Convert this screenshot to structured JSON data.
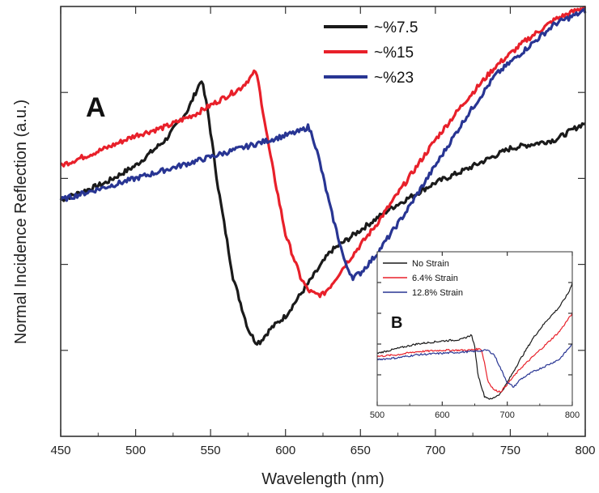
{
  "chart_data": [
    {
      "type": "line",
      "panel_label": "A",
      "xlabel": "Wavelength (nm)",
      "ylabel": "Normal Incidence Reflection (a.u.)",
      "xlim": [
        450,
        800
      ],
      "ylim": [
        0,
        1
      ],
      "x_ticks": [
        450,
        500,
        550,
        600,
        650,
        700,
        750,
        800
      ],
      "y_tick_labels_shown": false,
      "grid": false,
      "legend_position": "top-right",
      "series": [
        {
          "name": "~%7.5",
          "color": "#1a1a1a",
          "x": [
            450,
            480,
            500,
            520,
            535,
            540,
            544,
            548,
            555,
            565,
            575,
            580,
            583,
            590,
            600,
            610,
            620,
            630,
            650,
            670,
            690,
            700,
            720,
            750,
            780,
            800
          ],
          "y": [
            0.55,
            0.59,
            0.63,
            0.69,
            0.76,
            0.8,
            0.83,
            0.76,
            0.58,
            0.37,
            0.25,
            0.22,
            0.22,
            0.25,
            0.28,
            0.33,
            0.38,
            0.43,
            0.48,
            0.53,
            0.57,
            0.59,
            0.62,
            0.67,
            0.69,
            0.73
          ]
        },
        {
          "name": "~%15",
          "color": "#e8202a",
          "x": [
            450,
            480,
            500,
            520,
            540,
            560,
            570,
            578,
            580,
            582,
            590,
            600,
            610,
            615,
            620,
            625,
            630,
            640,
            660,
            680,
            700,
            720,
            740,
            760,
            780,
            800
          ],
          "y": [
            0.63,
            0.67,
            0.7,
            0.72,
            0.75,
            0.79,
            0.81,
            0.84,
            0.85,
            0.82,
            0.65,
            0.47,
            0.37,
            0.34,
            0.33,
            0.33,
            0.35,
            0.4,
            0.49,
            0.59,
            0.69,
            0.78,
            0.86,
            0.92,
            0.97,
            1.0
          ]
        },
        {
          "name": "~%23",
          "color": "#283593",
          "x": [
            450,
            480,
            500,
            520,
            540,
            560,
            580,
            600,
            610,
            615,
            618,
            622,
            630,
            640,
            645,
            650,
            660,
            680,
            700,
            720,
            740,
            760,
            780,
            800
          ],
          "y": [
            0.55,
            0.58,
            0.6,
            0.62,
            0.64,
            0.66,
            0.68,
            0.7,
            0.71,
            0.72,
            0.7,
            0.65,
            0.53,
            0.4,
            0.37,
            0.38,
            0.42,
            0.52,
            0.63,
            0.74,
            0.84,
            0.9,
            0.96,
            0.99
          ]
        }
      ]
    },
    {
      "type": "line",
      "panel_label": "B",
      "xlim": [
        500,
        800
      ],
      "ylim": [
        0,
        1
      ],
      "x_ticks": [
        500,
        600,
        700,
        800
      ],
      "y_tick_labels_shown": false,
      "grid": false,
      "legend_position": "top-left",
      "series": [
        {
          "name": "No Strain",
          "color": "#1a1a1a",
          "x": [
            500,
            530,
            560,
            600,
            630,
            645,
            650,
            655,
            665,
            675,
            690,
            700,
            720,
            740,
            760,
            780,
            795,
            800
          ],
          "y": [
            0.34,
            0.37,
            0.4,
            0.42,
            0.43,
            0.46,
            0.38,
            0.2,
            0.06,
            0.04,
            0.08,
            0.15,
            0.3,
            0.44,
            0.55,
            0.64,
            0.74,
            0.8
          ]
        },
        {
          "name": "6.4% Strain",
          "color": "#e8202a",
          "x": [
            500,
            530,
            560,
            600,
            640,
            660,
            665,
            670,
            680,
            690,
            700,
            720,
            740,
            760,
            780,
            800
          ],
          "y": [
            0.32,
            0.33,
            0.35,
            0.36,
            0.36,
            0.37,
            0.28,
            0.16,
            0.1,
            0.09,
            0.14,
            0.24,
            0.32,
            0.4,
            0.48,
            0.6
          ]
        },
        {
          "name": "12.8% Strain",
          "color": "#283593",
          "x": [
            500,
            530,
            560,
            600,
            640,
            670,
            680,
            690,
            700,
            710,
            720,
            740,
            760,
            780,
            800
          ],
          "y": [
            0.3,
            0.31,
            0.33,
            0.34,
            0.35,
            0.36,
            0.33,
            0.24,
            0.15,
            0.12,
            0.17,
            0.22,
            0.26,
            0.3,
            0.4
          ]
        }
      ]
    }
  ]
}
